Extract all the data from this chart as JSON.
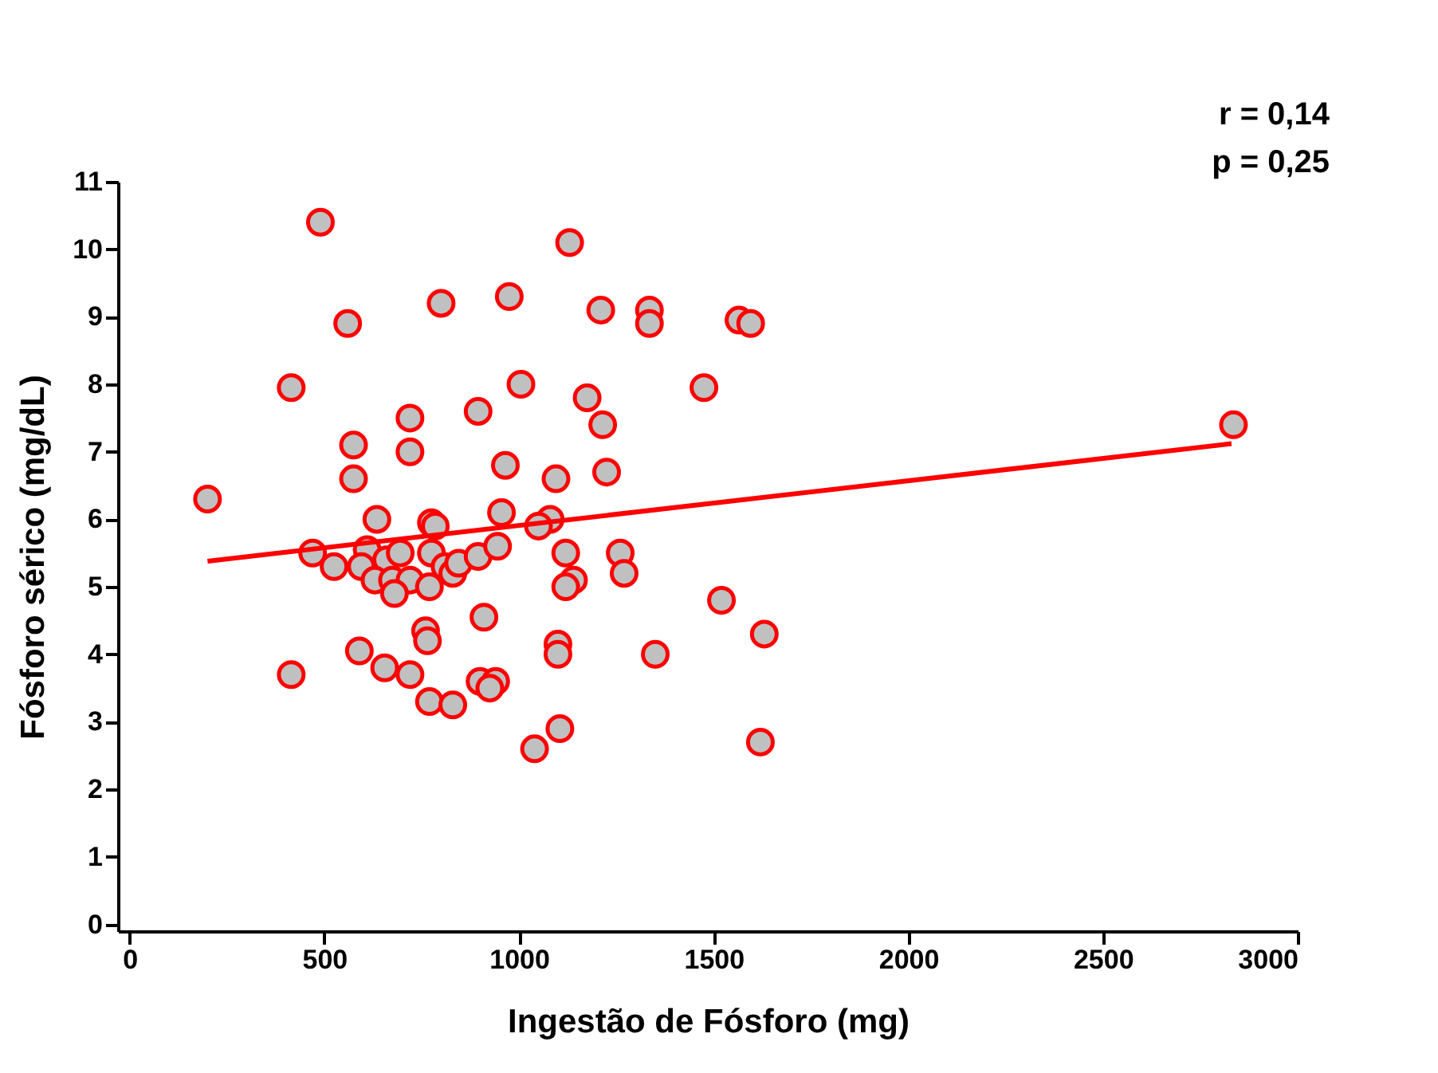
{
  "chart_data": {
    "type": "scatter",
    "xlabel": "Ingestão de Fósforo (mg)",
    "ylabel": "Fósforo sérico (mg/dL)",
    "annotations": [
      "r = 0,14",
      "p = 0,25"
    ],
    "series": [
      {
        "color": "#c0c0c0",
        "x": [
          200,
          490,
          1130,
          560,
          800,
          975,
          1210,
          1335,
          1335,
          1565,
          1595,
          415,
          1005,
          1175,
          1475,
          895,
          720,
          1215,
          575,
          720,
          965,
          1095,
          575,
          1225,
          2835,
          635,
          775,
          785,
          955,
          1080,
          1050,
          470,
          525,
          610,
          595,
          660,
          695,
          630,
          675,
          720,
          680,
          775,
          810,
          830,
          845,
          770,
          895,
          945,
          1120,
          1260,
          1270,
          1140,
          1120,
          910,
          760,
          765,
          1100,
          1100,
          590,
          1520,
          1630,
          1350,
          415,
          655,
          720,
          900,
          940,
          925,
          770,
          830,
          1105,
          1040,
          1620
        ],
        "values": [
          6.3,
          10.4,
          10.1,
          8.9,
          9.2,
          9.3,
          9.1,
          9.1,
          8.9,
          8.95,
          8.9,
          7.95,
          8.0,
          7.8,
          7.95,
          7.6,
          7.5,
          7.4,
          7.1,
          7.0,
          6.8,
          6.6,
          6.6,
          6.7,
          7.4,
          6.0,
          5.95,
          5.9,
          6.1,
          6.0,
          5.9,
          5.5,
          5.3,
          5.55,
          5.3,
          5.4,
          5.5,
          5.1,
          5.1,
          5.1,
          4.9,
          5.5,
          5.3,
          5.2,
          5.35,
          5.0,
          5.45,
          5.6,
          5.5,
          5.5,
          5.2,
          5.1,
          5.0,
          4.55,
          4.35,
          4.2,
          4.15,
          4.0,
          4.05,
          4.8,
          4.3,
          4.0,
          3.7,
          3.8,
          3.7,
          3.6,
          3.6,
          3.5,
          3.3,
          3.25,
          2.9,
          2.6,
          2.7
        ]
      },
      {
        "type": "line",
        "marker": "none",
        "color": "#ff0000",
        "x": [
          200,
          2830
        ],
        "values": [
          5.38,
          7.12
        ]
      }
    ],
    "xlim": [
      -30,
      3000
    ],
    "xticks": [
      0,
      500,
      1000,
      1500,
      2000,
      2500,
      3000
    ],
    "ylim": [
      -0.1,
      11
    ],
    "yticks": [
      0,
      1,
      2,
      3,
      4,
      5,
      6,
      7,
      8,
      9,
      10,
      11
    ],
    "grid": false,
    "marker": "circle",
    "line_style": "solid"
  }
}
